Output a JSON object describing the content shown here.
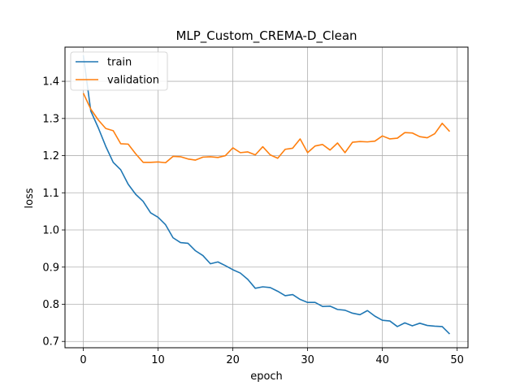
{
  "chart_data": {
    "type": "line",
    "title": "MLP_Custom_CREMA-D_Clean",
    "xlabel": "epoch",
    "ylabel": "loss",
    "xlim": [
      -2.45,
      51.45
    ],
    "ylim": [
      0.683,
      1.492
    ],
    "xticks": [
      0,
      10,
      20,
      30,
      40,
      50
    ],
    "xtick_labels": [
      "0",
      "10",
      "20",
      "30",
      "40",
      "50"
    ],
    "yticks": [
      0.7,
      0.8,
      0.9,
      1.0,
      1.1,
      1.2,
      1.3,
      1.4
    ],
    "ytick_labels": [
      "0.7",
      "0.8",
      "0.9",
      "1.0",
      "1.1",
      "1.2",
      "1.3",
      "1.4"
    ],
    "grid": true,
    "legend_position": "top-left",
    "x": [
      0,
      1,
      2,
      3,
      4,
      5,
      6,
      7,
      8,
      9,
      10,
      11,
      12,
      13,
      14,
      15,
      16,
      17,
      18,
      19,
      20,
      21,
      22,
      23,
      24,
      25,
      26,
      27,
      28,
      29,
      30,
      31,
      32,
      33,
      34,
      35,
      36,
      37,
      38,
      39,
      40,
      41,
      42,
      43,
      44,
      45,
      46,
      47,
      48,
      49
    ],
    "series": [
      {
        "name": "train",
        "color": "#1f77b4",
        "values": [
          1.47,
          1.32,
          1.275,
          1.225,
          1.182,
          1.162,
          1.123,
          1.096,
          1.077,
          1.046,
          1.034,
          1.014,
          0.979,
          0.966,
          0.964,
          0.944,
          0.931,
          0.909,
          0.914,
          0.904,
          0.893,
          0.884,
          0.867,
          0.843,
          0.847,
          0.845,
          0.835,
          0.823,
          0.826,
          0.813,
          0.805,
          0.805,
          0.794,
          0.795,
          0.786,
          0.784,
          0.776,
          0.772,
          0.783,
          0.768,
          0.757,
          0.755,
          0.74,
          0.75,
          0.742,
          0.749,
          0.743,
          0.741,
          0.74,
          0.72
        ]
      },
      {
        "name": "validation",
        "color": "#ff7f0e",
        "values": [
          1.368,
          1.325,
          1.296,
          1.273,
          1.267,
          1.232,
          1.231,
          1.205,
          1.182,
          1.182,
          1.183,
          1.181,
          1.198,
          1.197,
          1.191,
          1.188,
          1.196,
          1.197,
          1.195,
          1.2,
          1.221,
          1.208,
          1.21,
          1.202,
          1.224,
          1.202,
          1.193,
          1.217,
          1.22,
          1.245,
          1.208,
          1.226,
          1.23,
          1.215,
          1.234,
          1.208,
          1.236,
          1.238,
          1.237,
          1.239,
          1.253,
          1.245,
          1.247,
          1.262,
          1.261,
          1.251,
          1.248,
          1.259,
          1.287,
          1.265
        ]
      }
    ]
  }
}
